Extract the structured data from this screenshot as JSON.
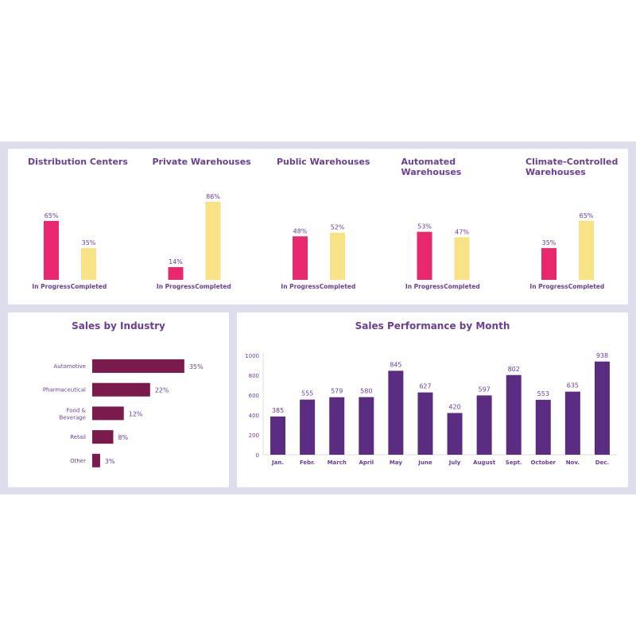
{
  "chart_data": [
    {
      "type": "bar",
      "title": "Distribution Centers",
      "categories": [
        "In Progress",
        "Completed"
      ],
      "values": [
        65,
        35
      ],
      "unit": "%",
      "colors": [
        "#e8276f",
        "#f7e386"
      ]
    },
    {
      "type": "bar",
      "title": "Private Warehouses",
      "categories": [
        "In Progress",
        "Completed"
      ],
      "values": [
        14,
        86
      ],
      "unit": "%",
      "colors": [
        "#e8276f",
        "#f7e386"
      ]
    },
    {
      "type": "bar",
      "title": "Public Warehouses",
      "categories": [
        "In Progress",
        "Completed"
      ],
      "values": [
        48,
        52
      ],
      "unit": "%",
      "colors": [
        "#e8276f",
        "#f7e386"
      ]
    },
    {
      "type": "bar",
      "title": "Automated Warehouses",
      "categories": [
        "In Progress",
        "Completed"
      ],
      "values": [
        53,
        47
      ],
      "unit": "%",
      "colors": [
        "#e8276f",
        "#f7e386"
      ]
    },
    {
      "type": "bar",
      "title": "Climate-Controlled Warehouses",
      "categories": [
        "In Progress",
        "Completed"
      ],
      "values": [
        35,
        65
      ],
      "unit": "%",
      "colors": [
        "#e8276f",
        "#f7e386"
      ]
    },
    {
      "type": "bar",
      "orientation": "horizontal",
      "title": "Sales by Industry",
      "categories": [
        "Automotive",
        "Pharmaceutical",
        "Food & Beverage",
        "Retail",
        "Other"
      ],
      "values": [
        35,
        22,
        12,
        8,
        3
      ],
      "unit": "%",
      "color": "#7a1a4d"
    },
    {
      "type": "bar",
      "title": "Sales Performance by Month",
      "categories": [
        "Jan.",
        "Febr.",
        "March",
        "April",
        "May",
        "June",
        "July",
        "August",
        "Sept.",
        "October",
        "Nov.",
        "Dec."
      ],
      "values": [
        385,
        555,
        579,
        580,
        845,
        627,
        420,
        597,
        802,
        553,
        635,
        938
      ],
      "ylim": [
        0,
        1000
      ],
      "yticks": [
        0,
        200,
        400,
        600,
        800,
        1000
      ],
      "color": "#5b2d82"
    }
  ]
}
